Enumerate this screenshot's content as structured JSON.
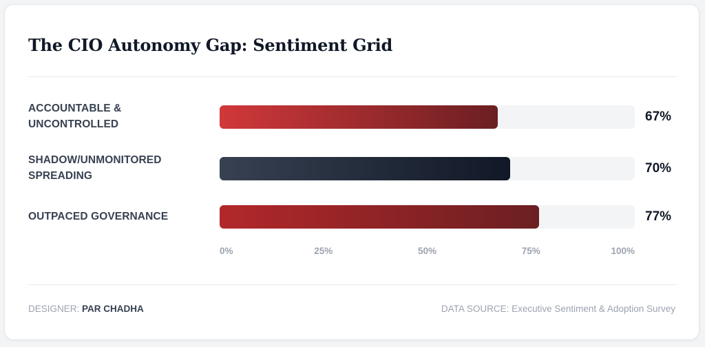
{
  "chart_data": {
    "type": "bar",
    "orientation": "horizontal",
    "title": "The CIO Autonomy Gap: Sentiment Grid",
    "categories": [
      "ACCOUNTABLE & UNCONTROLLED",
      "SHADOW/UNMONITORED SPREADING",
      "OUTPACED GOVERNANCE"
    ],
    "values": [
      67,
      70,
      77
    ],
    "value_labels": [
      "67%",
      "70%",
      "77%"
    ],
    "xlim": [
      0,
      100
    ],
    "x_ticks": [
      "0%",
      "25%",
      "50%",
      "75%",
      "100%"
    ],
    "grid": false,
    "legend": "none",
    "bar_colors": [
      [
        "#d1383a",
        "#6b1f22"
      ],
      [
        "#374151",
        "#111827"
      ],
      [
        "#b3282a",
        "#6b1f22"
      ]
    ],
    "track_color": "#f3f4f6"
  },
  "footer": {
    "designer_label": "DESIGNER:",
    "designer_name": "PAR CHADHA",
    "source_label": "DATA SOURCE:",
    "source_name": "Executive Sentiment & Adoption Survey"
  }
}
